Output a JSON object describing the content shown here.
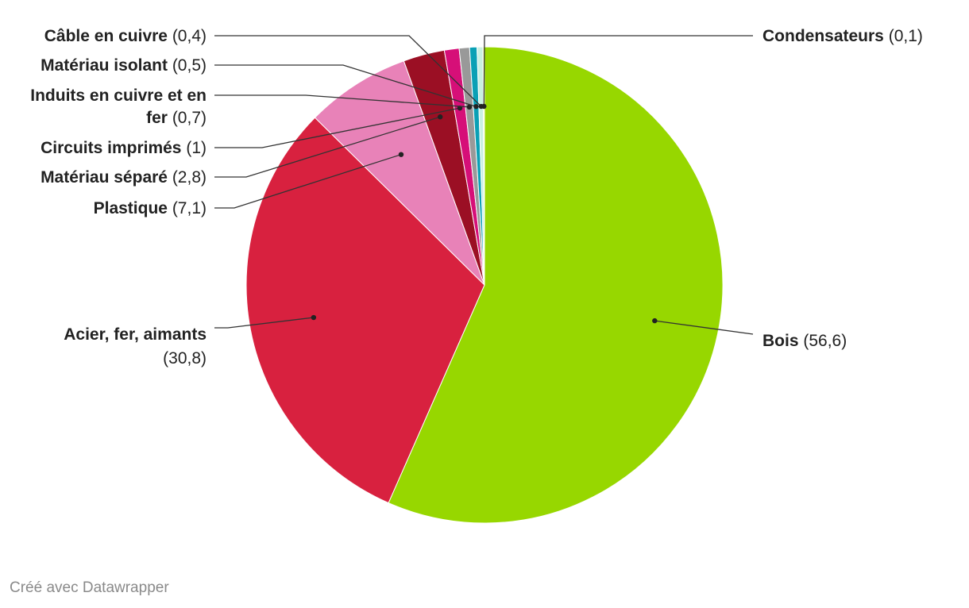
{
  "chart_data": {
    "type": "pie",
    "slices": [
      {
        "name": "Bois",
        "value": 56.6,
        "label_value": "(56,6)",
        "color": "#97d700"
      },
      {
        "name": "Acier, fer, aimants",
        "value": 30.8,
        "label_value": "(30,8)",
        "color": "#d8213f"
      },
      {
        "name": "Plastique",
        "value": 7.1,
        "label_value": "(7,1)",
        "color": "#e882b8"
      },
      {
        "name": "Matériau séparé",
        "value": 2.8,
        "label_value": "(2,8)",
        "color": "#9b0f24"
      },
      {
        "name": "Circuits imprimés",
        "value": 1,
        "label_value": "(1)",
        "color": "#d60f78"
      },
      {
        "name": "Induits en cuivre et en fer",
        "name_lines": [
          "Induits en cuivre et en",
          "fer"
        ],
        "value": 0.7,
        "label_value": "(0,7)",
        "color": "#999999"
      },
      {
        "name": "Matériau isolant",
        "value": 0.5,
        "label_value": "(0,5)",
        "color": "#0aa0b5"
      },
      {
        "name": "Câble en cuivre",
        "value": 0.4,
        "label_value": "(0,4)",
        "color": "#c9f0e2"
      },
      {
        "name": "Condensateurs",
        "value": 0.1,
        "label_value": "(0,1)",
        "color": "#e6f27a"
      }
    ]
  },
  "credit": "Créé avec Datawrapper"
}
